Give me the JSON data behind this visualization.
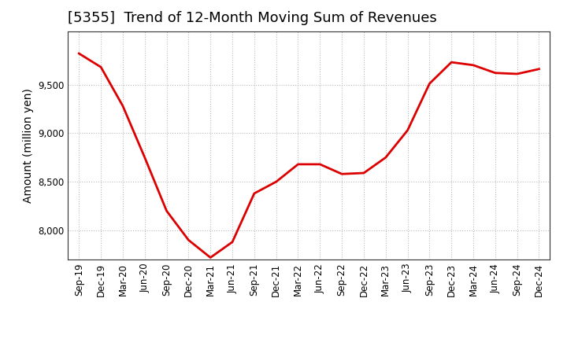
{
  "title": "[5355]  Trend of 12-Month Moving Sum of Revenues",
  "ylabel": "Amount (million yen)",
  "line_color": "#dd0000",
  "background_color": "#ffffff",
  "grid_color": "#bbbbbb",
  "x_labels": [
    "Sep-19",
    "Dec-19",
    "Mar-20",
    "Jun-20",
    "Sep-20",
    "Dec-20",
    "Mar-21",
    "Jun-21",
    "Sep-21",
    "Dec-21",
    "Mar-22",
    "Jun-22",
    "Sep-22",
    "Dec-22",
    "Mar-23",
    "Jun-23",
    "Sep-23",
    "Dec-23",
    "Mar-24",
    "Jun-24",
    "Sep-24",
    "Dec-24"
  ],
  "y_values": [
    9820,
    9680,
    9280,
    8750,
    8200,
    7900,
    7720,
    7880,
    8380,
    8500,
    8680,
    8680,
    8580,
    8590,
    8750,
    9030,
    9510,
    9730,
    9700,
    9620,
    9610,
    9660
  ],
  "ylim": [
    7700,
    10050
  ],
  "yticks": [
    8000,
    8500,
    9000,
    9500
  ],
  "title_fontsize": 13,
  "tick_fontsize": 8.5,
  "ylabel_fontsize": 10
}
